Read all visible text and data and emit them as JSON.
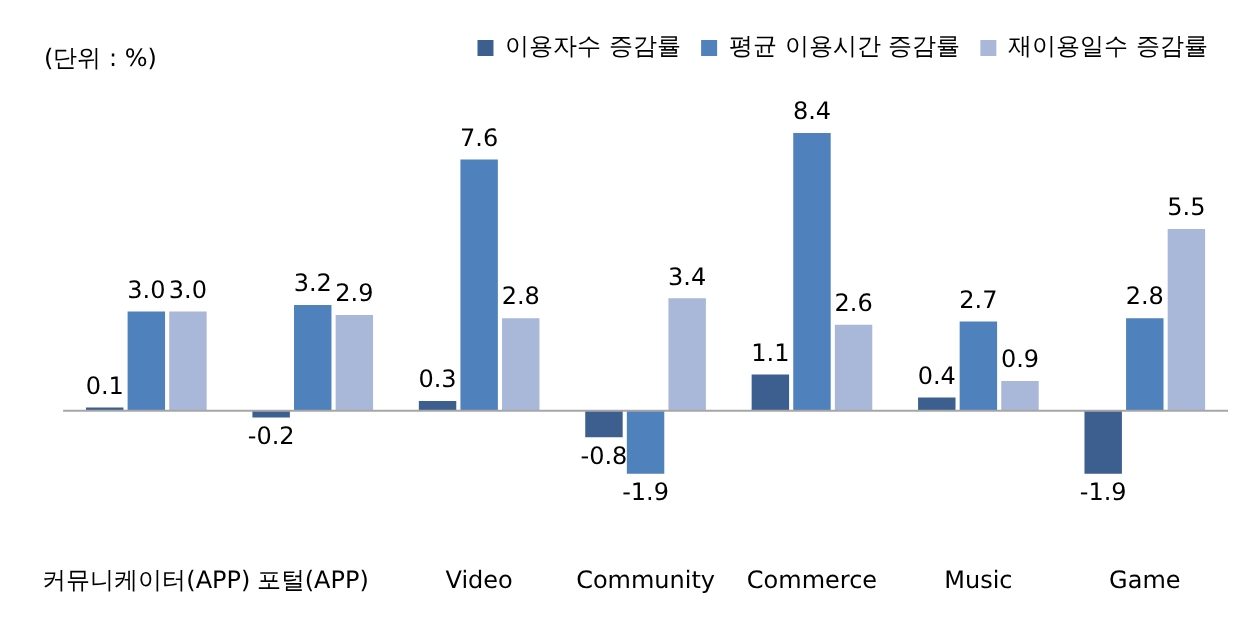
{
  "chart_data": {
    "type": "bar",
    "categories": [
      "커뮤니케이터(APP)",
      "포털(APP)",
      "Video",
      "Community",
      "Commerce",
      "Music",
      "Game"
    ],
    "series": [
      {
        "name": "이용자수 증감률",
        "color": "#3d5f8f",
        "values": [
          0.1,
          -0.2,
          0.3,
          -0.8,
          1.1,
          0.4,
          -1.9
        ],
        "value_labels": [
          "0.1",
          "-0.2",
          "0.3",
          "-0.8",
          "1.1",
          "0.4",
          "-1.9"
        ]
      },
      {
        "name": "평균 이용시간 증감률",
        "color": "#4f81bd",
        "values": [
          3.0,
          3.2,
          7.6,
          -1.9,
          8.4,
          2.7,
          2.8
        ],
        "value_labels": [
          "3.0",
          "3.2",
          "7.6",
          "-1.9",
          "8.4",
          "2.7",
          "2.8"
        ]
      },
      {
        "name": "재이용일수 증감률",
        "color": "#a9b8d9",
        "values": [
          3.0,
          2.9,
          2.8,
          3.4,
          2.6,
          0.9,
          5.5
        ],
        "value_labels": [
          "3.0",
          "2.9",
          "2.8",
          "3.4",
          "2.6",
          "0.9",
          "5.5"
        ]
      }
    ],
    "tick_labels": "x",
    "grid": false,
    "legend": "top right",
    "annotations": [
      "(단위 : %)"
    ]
  }
}
